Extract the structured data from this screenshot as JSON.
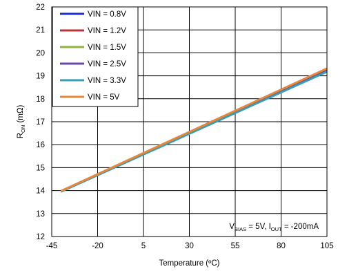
{
  "chart_data": {
    "type": "line",
    "xlabel": "Temperature (ºC)",
    "ylabel": {
      "base": "R",
      "sub": "ON",
      "unit": " (mΩ)"
    },
    "xlim": [
      -45,
      105
    ],
    "ylim": [
      12,
      22
    ],
    "xticks": [
      "-45",
      "-20",
      "5",
      "30",
      "55",
      "80",
      "105"
    ],
    "yticks": [
      "12",
      "13",
      "14",
      "15",
      "16",
      "17",
      "18",
      "19",
      "20",
      "21",
      "22"
    ],
    "grid": true,
    "legend_position": "top-left",
    "annotation": {
      "p1": "V",
      "s1": "BIAS",
      "p2": " = 5V, I",
      "s2": "OUT",
      "p3": " = -200mA"
    },
    "series": [
      {
        "name": "VIN = 0.8V",
        "color": "#1f2fd6",
        "x": [
          -40,
          105
        ],
        "y": [
          13.97,
          19.25
        ]
      },
      {
        "name": "VIN = 1.2V",
        "color": "#b23a3a",
        "x": [
          -40,
          105
        ],
        "y": [
          13.97,
          19.27
        ]
      },
      {
        "name": "VIN = 1.5V",
        "color": "#8db33a",
        "x": [
          -40,
          105
        ],
        "y": [
          13.97,
          19.28
        ]
      },
      {
        "name": "VIN = 2.5V",
        "color": "#6a4a9e",
        "x": [
          -40,
          105
        ],
        "y": [
          13.97,
          19.27
        ]
      },
      {
        "name": "VIN = 3.3V",
        "color": "#3a9db5",
        "x": [
          -40,
          105
        ],
        "y": [
          13.95,
          19.18
        ]
      },
      {
        "name": "VIN = 5V",
        "color": "#e8873a",
        "x": [
          -40,
          105
        ],
        "y": [
          13.98,
          19.32
        ]
      }
    ]
  }
}
